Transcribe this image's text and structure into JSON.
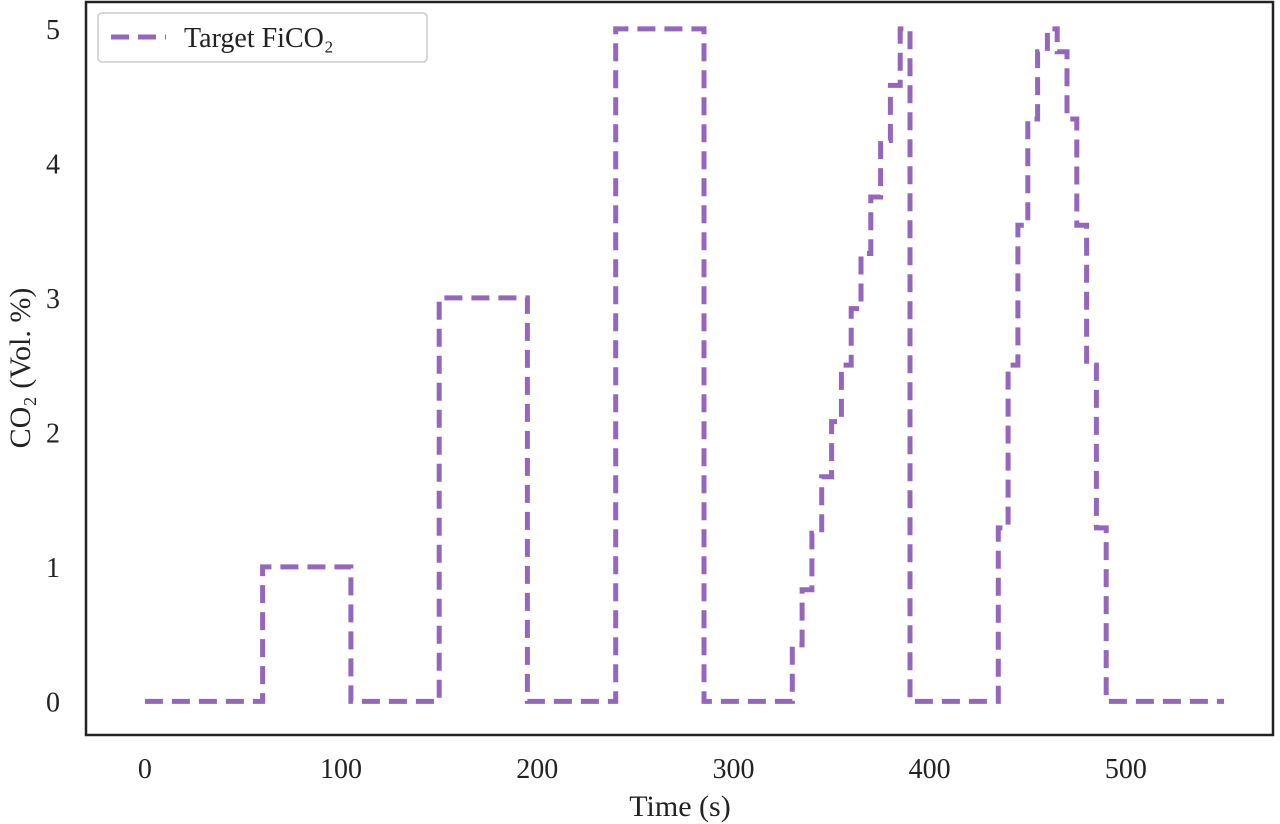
{
  "chart_data": {
    "type": "line",
    "title": "",
    "xlabel": "Time (s)",
    "ylabel": "CO₂ (Vol. %)",
    "xlim": [
      -30,
      575
    ],
    "ylim": [
      -0.25,
      5.2
    ],
    "xticks": [
      0,
      100,
      200,
      300,
      400,
      500
    ],
    "yticks": [
      0,
      1,
      2,
      3,
      4,
      5
    ],
    "grid": false,
    "legend_position": "top-left",
    "series": [
      {
        "name": "Target FiCO₂",
        "color": "#9467bd",
        "line_style": "dashed",
        "x": [
          0,
          60,
          60,
          105,
          105,
          150,
          150,
          195,
          195,
          240,
          240,
          285,
          285,
          330,
          330,
          335,
          335,
          340,
          340,
          345,
          345,
          350,
          350,
          355,
          355,
          360,
          360,
          365,
          365,
          370,
          370,
          375,
          375,
          380,
          380,
          385,
          385,
          390,
          390,
          435,
          435,
          440,
          440,
          445,
          445,
          450,
          450,
          455,
          455,
          460,
          460,
          465,
          465,
          470,
          470,
          475,
          475,
          480,
          480,
          485,
          485,
          490,
          490,
          550
        ],
        "y": [
          0,
          0,
          1,
          1,
          0,
          0,
          3,
          3,
          0,
          0,
          5,
          5,
          0,
          0,
          0.42,
          0.42,
          0.83,
          0.83,
          1.25,
          1.25,
          1.67,
          1.67,
          2.08,
          2.08,
          2.5,
          2.5,
          2.92,
          2.92,
          3.33,
          3.33,
          3.75,
          3.75,
          4.17,
          4.17,
          4.58,
          4.58,
          5,
          5,
          0,
          0,
          1.29,
          1.29,
          2.5,
          2.5,
          3.54,
          3.54,
          4.33,
          4.33,
          4.83,
          4.83,
          5,
          5,
          4.83,
          4.83,
          4.33,
          4.33,
          3.54,
          3.54,
          2.5,
          2.5,
          1.29,
          1.29,
          0,
          0
        ]
      }
    ]
  }
}
